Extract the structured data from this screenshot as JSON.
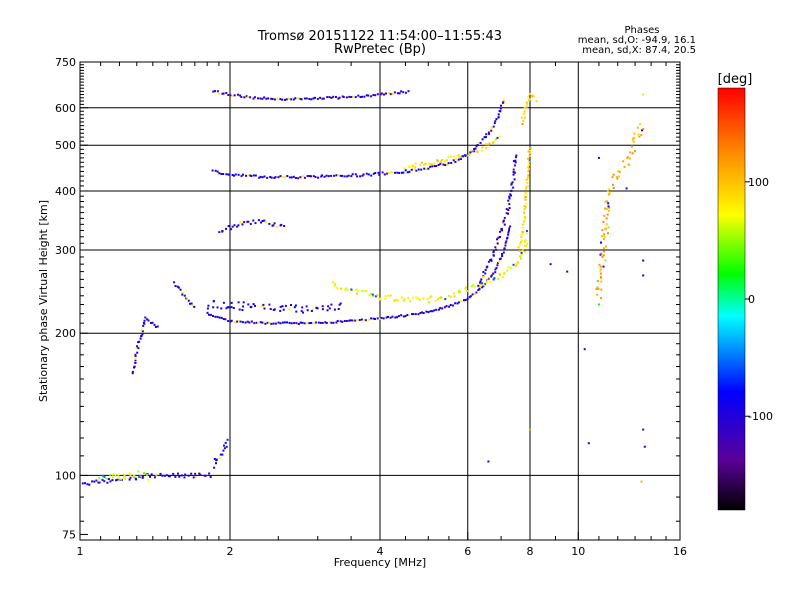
{
  "chart_data": {
    "type": "scatter",
    "title": "Tromsø 20151122 11:54:00–11:55:43",
    "subtitle": "RwPretec (Bp)",
    "stats": {
      "heading": "Phases",
      "o_line": "mean, sd,O: -94.9, 16.1",
      "x_line": "mean, sd,X:  87.4, 20.5"
    },
    "xlabel": "Frequency [MHz]",
    "ylabel": "Stationary phase Virtual Height [km]",
    "x_scale": "log",
    "y_scale": "log",
    "xlim": [
      1,
      16
    ],
    "ylim": [
      73,
      750
    ],
    "x_ticks": [
      1,
      2,
      4,
      6,
      8,
      10,
      16
    ],
    "x_tick_labels": [
      "1",
      "2",
      "4",
      "6",
      "8",
      "10",
      "16"
    ],
    "y_ticks": [
      75,
      100,
      200,
      300,
      400,
      500,
      600,
      750
    ],
    "y_tick_labels": [
      "75",
      "100",
      "200",
      "300",
      "400",
      "500",
      "600",
      "750"
    ],
    "grid": true,
    "colorbar": {
      "label": "[deg]",
      "range": [
        -180,
        180
      ],
      "ticks": [
        100,
        0,
        -100
      ],
      "tick_labels": [
        "100",
        "0",
        "-100"
      ]
    },
    "traces": [
      {
        "x": [
          1.0,
          1.2,
          1.4,
          1.6,
          1.75,
          1.85
        ],
        "y": [
          96,
          98,
          100,
          100,
          100,
          100
        ],
        "phase": -100,
        "spread": 0.02
      },
      {
        "x": [
          1.1,
          1.2,
          1.3,
          1.38
        ],
        "y": [
          100,
          99,
          101,
          99
        ],
        "phase": 60,
        "spread": 0.03
      },
      {
        "x": [
          1.85,
          1.92,
          1.98
        ],
        "y": [
          105,
          112,
          120
        ],
        "phase": -90,
        "spread": 0.03
      },
      {
        "x": [
          1.28,
          1.3,
          1.33,
          1.35
        ],
        "y": [
          165,
          185,
          200,
          215
        ],
        "phase": -100,
        "spread": 0.015
      },
      {
        "x": [
          1.35,
          1.4,
          1.45
        ],
        "y": [
          215,
          210,
          205
        ],
        "phase": -95,
        "spread": 0.015
      },
      {
        "x": [
          1.55,
          1.62,
          1.7
        ],
        "y": [
          255,
          240,
          225
        ],
        "phase": -100,
        "spread": 0.015
      },
      {
        "x": [
          1.8,
          2.0,
          2.4,
          2.8,
          3.2,
          3.6,
          4.0,
          4.5,
          5.0,
          5.5,
          6.0,
          6.4,
          6.8,
          7.1,
          7.3
        ],
        "y": [
          220,
          212,
          210,
          210,
          211,
          213,
          215,
          218,
          222,
          228,
          236,
          250,
          270,
          300,
          340
        ],
        "phase": -100,
        "spread": 0.008
      },
      {
        "x": [
          1.8,
          2.2,
          2.6,
          3.0,
          3.4
        ],
        "y": [
          230,
          228,
          226,
          225,
          228
        ],
        "phase": -95,
        "spread": 0.04
      },
      {
        "x": [
          3.2,
          3.6,
          4.0,
          4.5,
          5.0,
          5.5,
          6.0,
          6.5,
          7.0,
          7.5,
          7.8,
          7.95
        ],
        "y": [
          255,
          245,
          238,
          235,
          235,
          240,
          248,
          255,
          265,
          280,
          300,
          330
        ],
        "phase": 75,
        "spread": 0.03
      },
      {
        "x": [
          6.3,
          6.8,
          7.2,
          7.4,
          7.5
        ],
        "y": [
          250,
          300,
          360,
          420,
          480
        ],
        "phase": -110,
        "spread": 0.02
      },
      {
        "x": [
          7.6,
          7.8,
          7.9,
          8.0
        ],
        "y": [
          300,
          350,
          420,
          500
        ],
        "phase": 90,
        "spread": 0.015
      },
      {
        "x": [
          1.85,
          2.0,
          2.4,
          2.8,
          3.2,
          3.6,
          4.0,
          4.5,
          5.0,
          5.5,
          6.0,
          6.3,
          6.6,
          6.9,
          7.1
        ],
        "y": [
          440,
          432,
          428,
          428,
          430,
          432,
          435,
          440,
          448,
          458,
          475,
          500,
          530,
          570,
          630
        ],
        "phase": -100,
        "spread": 0.012
      },
      {
        "x": [
          4.5,
          5.0,
          5.5,
          6.0,
          6.5,
          7.0
        ],
        "y": [
          450,
          458,
          468,
          480,
          495,
          520
        ],
        "phase": 85,
        "spread": 0.02
      },
      {
        "x": [
          7.7,
          7.85,
          8.0,
          8.3
        ],
        "y": [
          560,
          600,
          640,
          620
        ],
        "phase": 100,
        "spread": 0.02
      },
      {
        "x": [
          1.85,
          2.2,
          2.6,
          3.0,
          3.5,
          4.0,
          4.6
        ],
        "y": [
          650,
          630,
          625,
          628,
          632,
          640,
          650
        ],
        "phase": -105,
        "spread": 0.01
      },
      {
        "x": [
          1.9,
          2.0,
          2.1,
          2.3,
          2.6
        ],
        "y": [
          330,
          335,
          340,
          345,
          335
        ],
        "phase": -100,
        "spread": 0.02
      },
      {
        "x": [
          11.0,
          11.5,
          12.5,
          13.5
        ],
        "y": [
          240,
          400,
          460,
          560
        ],
        "phase": 110,
        "spread": 0.05
      }
    ],
    "scatter_points": [
      {
        "x": 6.6,
        "y": 107,
        "phase": -90
      },
      {
        "x": 8.0,
        "y": 125,
        "phase": 110
      },
      {
        "x": 8.8,
        "y": 280,
        "phase": -100
      },
      {
        "x": 9.5,
        "y": 270,
        "phase": -100
      },
      {
        "x": 10.3,
        "y": 185,
        "phase": -100
      },
      {
        "x": 10.5,
        "y": 117,
        "phase": -100
      },
      {
        "x": 11.0,
        "y": 470,
        "phase": -100
      },
      {
        "x": 11.0,
        "y": 230,
        "phase": 20
      },
      {
        "x": 11.5,
        "y": 335,
        "phase": 50
      },
      {
        "x": 12.5,
        "y": 405,
        "phase": -100
      },
      {
        "x": 13.5,
        "y": 125,
        "phase": -120
      },
      {
        "x": 13.6,
        "y": 115,
        "phase": -100
      },
      {
        "x": 13.5,
        "y": 265,
        "phase": -100
      },
      {
        "x": 13.5,
        "y": 285,
        "phase": -100
      },
      {
        "x": 13.4,
        "y": 97,
        "phase": 110
      },
      {
        "x": 13.5,
        "y": 640,
        "phase": 60
      }
    ]
  }
}
